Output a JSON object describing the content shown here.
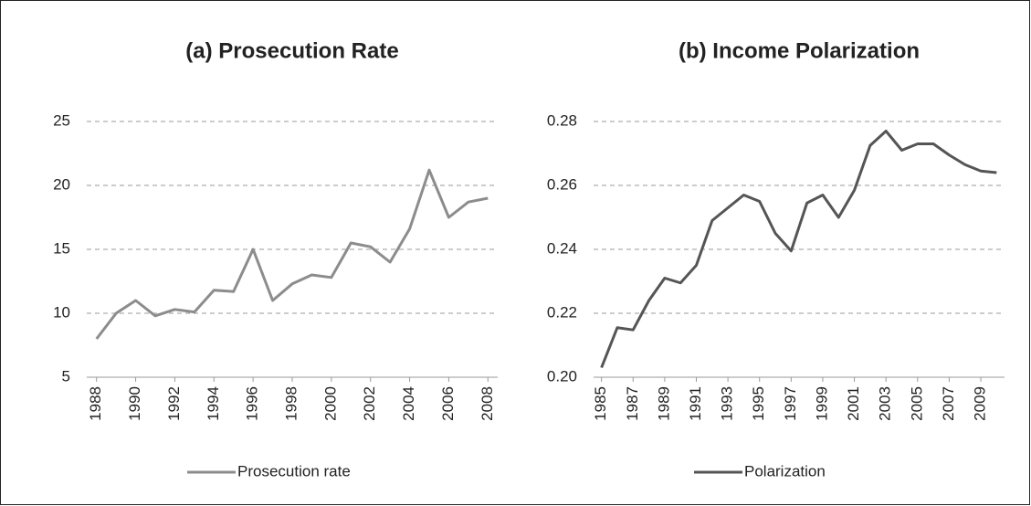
{
  "chart_data": [
    {
      "type": "line",
      "title": "(a) Prosecution Rate",
      "x": [
        1988,
        1989,
        1990,
        1991,
        1992,
        1993,
        1994,
        1995,
        1996,
        1997,
        1998,
        1999,
        2000,
        2001,
        2002,
        2003,
        2004,
        2005,
        2006,
        2007,
        2008
      ],
      "series": [
        {
          "name": "Prosecution rate",
          "color": "#8c8c8c",
          "values": [
            8,
            10,
            11,
            9.8,
            10.3,
            10.1,
            11.8,
            11.7,
            15,
            11,
            12.3,
            13,
            12.8,
            15.5,
            15.2,
            14,
            16.6,
            21.2,
            17.5,
            18.7,
            19
          ]
        }
      ],
      "xlim": [
        1987.5,
        2008.5
      ],
      "xticks": [
        1988,
        1990,
        1992,
        1994,
        1996,
        1998,
        2000,
        2002,
        2004,
        2006,
        2008
      ],
      "ylim": [
        5,
        25
      ],
      "yticks": [
        5,
        10,
        15,
        20,
        25
      ],
      "grid": true,
      "legend": "bottom"
    },
    {
      "type": "line",
      "title": "(b) Income Polarization",
      "x": [
        1985,
        1986,
        1987,
        1988,
        1989,
        1990,
        1991,
        1992,
        1993,
        1994,
        1995,
        1996,
        1997,
        1998,
        1999,
        2000,
        2001,
        2002,
        2003,
        2004,
        2005,
        2006,
        2007,
        2008,
        2009,
        2010
      ],
      "series": [
        {
          "name": "Polarization",
          "color": "#555555",
          "values": [
            0.203,
            0.2155,
            0.2148,
            0.224,
            0.231,
            0.2295,
            0.235,
            0.249,
            0.253,
            0.257,
            0.255,
            0.245,
            0.2395,
            0.2545,
            0.257,
            0.25,
            0.2585,
            0.2725,
            0.277,
            0.271,
            0.273,
            0.273,
            0.2695,
            0.2665,
            0.2645,
            0.264
          ]
        }
      ],
      "xlim": [
        1984.5,
        2010.5
      ],
      "xticks": [
        1985,
        1987,
        1989,
        1991,
        1993,
        1995,
        1997,
        1999,
        2001,
        2003,
        2005,
        2007,
        2009
      ],
      "ylim": [
        0.2,
        0.28
      ],
      "yticks": [
        {
          "value": 0.2,
          "label": "0.20"
        },
        {
          "value": 0.22,
          "label": "0.22"
        },
        {
          "value": 0.24,
          "label": "0.24"
        },
        {
          "value": 0.26,
          "label": "0.26"
        },
        {
          "value": 0.28,
          "label": "0.28"
        }
      ],
      "grid": true,
      "legend": "bottom"
    }
  ]
}
